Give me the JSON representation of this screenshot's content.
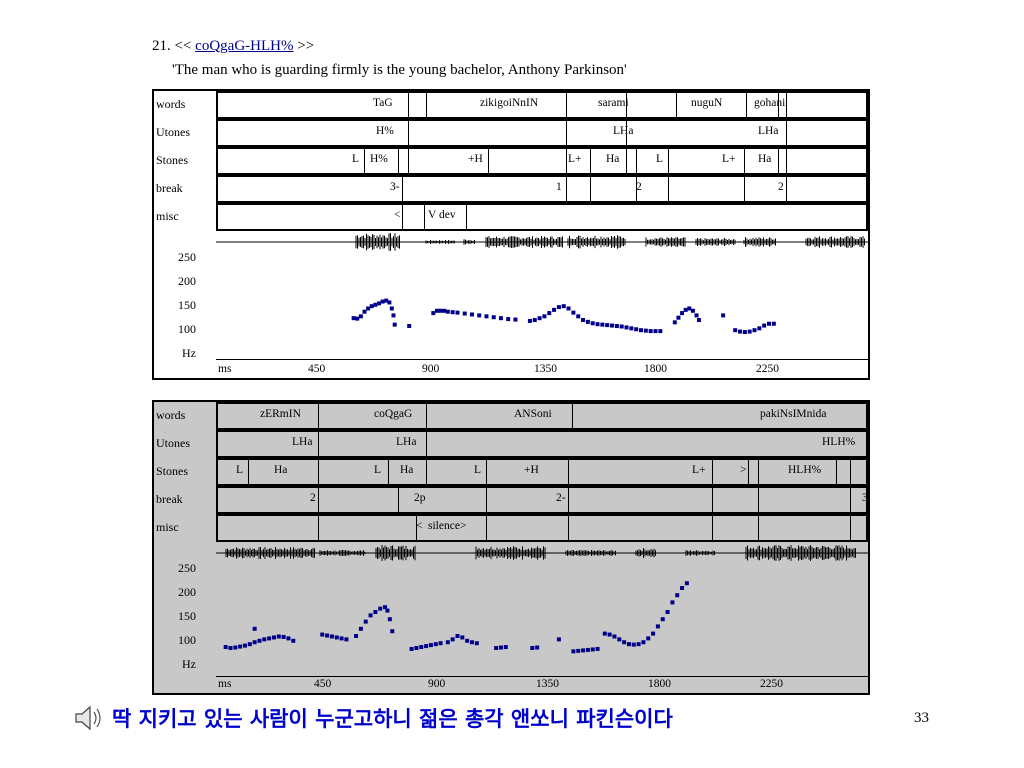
{
  "header": {
    "number": "21.",
    "open": "<<",
    "title_link": "coQgaG-HLH%",
    "close": ">>",
    "gloss": "'The man who is guarding firmly is the young bachelor, Anthony Parkinson'"
  },
  "tier_labels": [
    "words",
    "Utones",
    "Stones",
    "break",
    "misc"
  ],
  "hz_axis": {
    "ticks": [
      "250",
      "200",
      "150",
      "100"
    ],
    "unit": "Hz",
    "time_unit": "ms"
  },
  "panel1": {
    "words": [
      "TaG",
      "zikigoiNnIN",
      "sarami",
      "nuguN",
      "gohani"
    ],
    "utones": [
      "H%",
      "LHa",
      "LHa"
    ],
    "stones": [
      "L",
      "H%",
      "+H",
      "L+",
      "Ha",
      "L",
      "L+",
      "Ha"
    ],
    "breaks": [
      "3-",
      "1",
      "2",
      "2"
    ],
    "misc": [
      "<",
      "V dev"
    ],
    "time_ticks": [
      "450",
      "900",
      "1350",
      "1800",
      "2250"
    ]
  },
  "panel2": {
    "words": [
      "zERmIN",
      "coQgaG",
      "ANSoni",
      "pakiNsIMnida"
    ],
    "utones": [
      "LHa",
      "LHa",
      "HLH%"
    ],
    "stones": [
      "L",
      "Ha",
      "L",
      "Ha",
      "L",
      "+H",
      "L+",
      ">",
      "HLH%"
    ],
    "breaks": [
      "2",
      "2p",
      "2-",
      "3"
    ],
    "misc": [
      "<",
      "silence>"
    ],
    "time_ticks": [
      "450",
      "900",
      "1350",
      "1800",
      "2250"
    ]
  },
  "footer": {
    "speaker_icon": "speaker-icon",
    "korean": "딱 지키고 있는 사람이 누군고하니 젊은 총각 앤쏘니 파킨슨이다",
    "page": "33"
  },
  "colors": {
    "pitch": "#00008b",
    "footer_text": "#0000cc",
    "panel2_bg": "#c8c8c8"
  },
  "chart_data": [
    {
      "type": "scatter",
      "xlabel": "ms",
      "ylabel": "Hz",
      "yticks": [
        250,
        200,
        150,
        100
      ],
      "xticks": [
        450,
        900,
        1350,
        1800,
        2250
      ],
      "ylim": [
        50,
        275
      ],
      "xlim": [
        0,
        2700
      ],
      "series": [
        {
          "values": [
            [
              570,
              134
            ],
            [
              585,
              133
            ],
            [
              600,
              138
            ],
            [
              615,
              148
            ],
            [
              630,
              155
            ],
            [
              645,
              160
            ],
            [
              660,
              163
            ],
            [
              675,
              166
            ],
            [
              690,
              170
            ],
            [
              705,
              172
            ],
            [
              718,
              168
            ],
            [
              728,
              155
            ],
            [
              735,
              140
            ],
            [
              740,
              120
            ],
            [
              800,
              117
            ],
            [
              900,
              145
            ],
            [
              915,
              150
            ],
            [
              930,
              150
            ],
            [
              945,
              150
            ],
            [
              960,
              148
            ],
            [
              980,
              147
            ],
            [
              1000,
              146
            ],
            [
              1030,
              144
            ],
            [
              1060,
              142
            ],
            [
              1090,
              140
            ],
            [
              1120,
              138
            ],
            [
              1150,
              136
            ],
            [
              1180,
              134
            ],
            [
              1210,
              132
            ],
            [
              1240,
              131
            ],
            [
              1300,
              128
            ],
            [
              1320,
              130
            ],
            [
              1340,
              134
            ],
            [
              1360,
              138
            ],
            [
              1380,
              145
            ],
            [
              1400,
              152
            ],
            [
              1420,
              158
            ],
            [
              1440,
              160
            ],
            [
              1460,
              155
            ],
            [
              1480,
              146
            ],
            [
              1500,
              138
            ],
            [
              1520,
              130
            ],
            [
              1540,
              126
            ],
            [
              1560,
              123
            ],
            [
              1580,
              121
            ],
            [
              1600,
              120
            ],
            [
              1620,
              119
            ],
            [
              1640,
              118
            ],
            [
              1660,
              117
            ],
            [
              1680,
              116
            ],
            [
              1700,
              114
            ],
            [
              1720,
              112
            ],
            [
              1740,
              110
            ],
            [
              1760,
              108
            ],
            [
              1780,
              107
            ],
            [
              1800,
              106
            ],
            [
              1820,
              106
            ],
            [
              1840,
              106
            ],
            [
              1900,
              125
            ],
            [
              1915,
              135
            ],
            [
              1930,
              145
            ],
            [
              1945,
              152
            ],
            [
              1960,
              155
            ],
            [
              1975,
              150
            ],
            [
              1990,
              140
            ],
            [
              2000,
              130
            ],
            [
              2100,
              140
            ],
            [
              2150,
              108
            ],
            [
              2170,
              105
            ],
            [
              2190,
              104
            ],
            [
              2210,
              105
            ],
            [
              2230,
              108
            ],
            [
              2250,
              112
            ],
            [
              2270,
              118
            ],
            [
              2290,
              122
            ],
            [
              2310,
              122
            ]
          ]
        }
      ]
    },
    {
      "type": "scatter",
      "xlabel": "ms",
      "ylabel": "Hz",
      "yticks": [
        250,
        200,
        150,
        100
      ],
      "xticks": [
        450,
        900,
        1350,
        1800,
        2250
      ],
      "ylim": [
        50,
        275
      ],
      "xlim": [
        0,
        2700
      ],
      "series": [
        {
          "values": [
            [
              40,
              102
            ],
            [
              60,
              100
            ],
            [
              80,
              101
            ],
            [
              100,
              103
            ],
            [
              120,
              105
            ],
            [
              140,
              108
            ],
            [
              160,
              112
            ],
            [
              180,
              115
            ],
            [
              200,
              118
            ],
            [
              220,
              120
            ],
            [
              240,
              122
            ],
            [
              260,
              124
            ],
            [
              280,
              123
            ],
            [
              300,
              120
            ],
            [
              320,
              115
            ],
            [
              160,
              140
            ],
            [
              440,
              128
            ],
            [
              460,
              126
            ],
            [
              480,
              124
            ],
            [
              500,
              122
            ],
            [
              520,
              120
            ],
            [
              540,
              118
            ],
            [
              580,
              125
            ],
            [
              600,
              140
            ],
            [
              620,
              155
            ],
            [
              640,
              168
            ],
            [
              660,
              175
            ],
            [
              680,
              182
            ],
            [
              700,
              185
            ],
            [
              710,
              178
            ],
            [
              720,
              160
            ],
            [
              730,
              135
            ],
            [
              810,
              98
            ],
            [
              830,
              100
            ],
            [
              850,
              102
            ],
            [
              870,
              104
            ],
            [
              890,
              106
            ],
            [
              910,
              108
            ],
            [
              930,
              110
            ],
            [
              960,
              112
            ],
            [
              980,
              118
            ],
            [
              1000,
              125
            ],
            [
              1020,
              122
            ],
            [
              1040,
              115
            ],
            [
              1060,
              112
            ],
            [
              1080,
              110
            ],
            [
              1160,
              100
            ],
            [
              1180,
              101
            ],
            [
              1200,
              102
            ],
            [
              1310,
              100
            ],
            [
              1330,
              101
            ],
            [
              1420,
              118
            ],
            [
              1480,
              93
            ],
            [
              1500,
              94
            ],
            [
              1520,
              95
            ],
            [
              1540,
              96
            ],
            [
              1560,
              97
            ],
            [
              1580,
              98
            ],
            [
              1610,
              130
            ],
            [
              1630,
              128
            ],
            [
              1650,
              124
            ],
            [
              1670,
              118
            ],
            [
              1690,
              112
            ],
            [
              1710,
              108
            ],
            [
              1730,
              107
            ],
            [
              1750,
              108
            ],
            [
              1770,
              112
            ],
            [
              1790,
              120
            ],
            [
              1810,
              130
            ],
            [
              1830,
              145
            ],
            [
              1850,
              160
            ],
            [
              1870,
              175
            ],
            [
              1890,
              195
            ],
            [
              1910,
              210
            ],
            [
              1930,
              225
            ],
            [
              1950,
              235
            ]
          ]
        }
      ]
    }
  ]
}
